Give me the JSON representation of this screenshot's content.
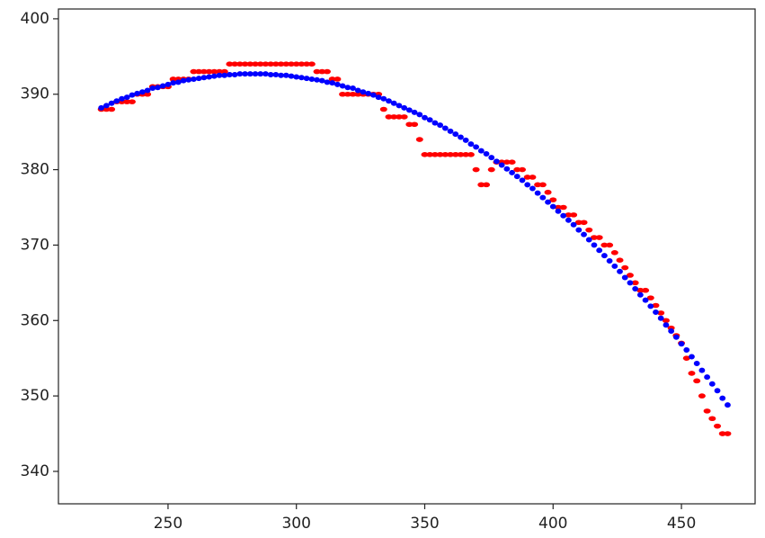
{
  "chart_data": {
    "type": "scatter",
    "xlim": [
      207.3,
      478.7
    ],
    "ylim": [
      335.7,
      401.3
    ],
    "xticks": [
      250,
      300,
      350,
      400,
      450
    ],
    "yticks": [
      340,
      350,
      360,
      370,
      380,
      390,
      400
    ],
    "x": [
      224,
      226,
      228,
      230,
      232,
      234,
      236,
      238,
      240,
      242,
      244,
      246,
      248,
      250,
      252,
      254,
      256,
      258,
      260,
      262,
      264,
      266,
      268,
      270,
      272,
      274,
      276,
      278,
      280,
      282,
      284,
      286,
      288,
      290,
      292,
      294,
      296,
      298,
      300,
      302,
      304,
      306,
      308,
      310,
      312,
      314,
      316,
      318,
      320,
      322,
      324,
      326,
      328,
      330,
      332,
      334,
      336,
      338,
      340,
      342,
      344,
      346,
      348,
      350,
      352,
      354,
      356,
      358,
      360,
      362,
      364,
      366,
      368,
      370,
      372,
      374,
      376,
      378,
      380,
      382,
      384,
      386,
      388,
      390,
      392,
      394,
      396,
      398,
      400,
      402,
      404,
      406,
      408,
      410,
      412,
      414,
      416,
      418,
      420,
      422,
      424,
      426,
      428,
      430,
      432,
      434,
      436,
      438,
      440,
      442,
      444,
      446,
      448,
      450,
      452,
      454,
      456,
      458,
      460,
      462,
      464,
      466,
      468
    ],
    "series": [
      {
        "color": "#ff0000",
        "values": [
          388,
          388,
          388,
          389,
          389,
          389,
          389,
          390,
          390,
          390,
          391,
          391,
          391,
          391,
          392,
          392,
          392,
          392,
          393,
          393,
          393,
          393,
          393,
          393,
          393,
          394,
          394,
          394,
          394,
          394,
          394,
          394,
          394,
          394,
          394,
          394,
          394,
          394,
          394,
          394,
          394,
          394,
          393,
          393,
          393,
          392,
          392,
          390,
          390,
          390,
          390,
          390,
          390,
          390,
          390,
          388,
          387,
          387,
          387,
          387,
          386,
          386,
          384,
          382,
          382,
          382,
          382,
          382,
          382,
          382,
          382,
          382,
          382,
          380,
          378,
          378,
          380,
          381,
          381,
          381,
          381,
          380,
          380,
          379,
          379,
          378,
          378,
          377,
          376,
          375,
          375,
          374,
          374,
          373,
          373,
          372,
          371,
          371,
          370,
          370,
          369,
          368,
          367,
          366,
          365,
          364,
          364,
          363,
          362,
          361,
          360,
          359,
          358,
          357,
          355,
          353,
          352,
          350,
          348,
          347,
          346,
          345,
          345
        ]
      },
      {
        "color": "#0000ff",
        "values": [
          388.2,
          388.5,
          388.8,
          389.1,
          389.4,
          389.6,
          389.9,
          390.1,
          390.3,
          390.5,
          390.8,
          390.9,
          391.1,
          391.3,
          391.5,
          391.6,
          391.8,
          391.9,
          392.0,
          392.1,
          392.2,
          392.3,
          392.4,
          392.5,
          392.5,
          392.6,
          392.6,
          392.7,
          392.7,
          392.7,
          392.7,
          392.7,
          392.7,
          392.6,
          392.6,
          392.5,
          392.5,
          392.4,
          392.3,
          392.2,
          392.1,
          392.0,
          391.9,
          391.8,
          391.6,
          391.5,
          391.3,
          391.1,
          390.9,
          390.8,
          390.5,
          390.3,
          390.1,
          389.9,
          389.6,
          389.4,
          389.1,
          388.8,
          388.5,
          388.2,
          387.9,
          387.6,
          387.3,
          386.9,
          386.6,
          386.2,
          385.9,
          385.5,
          385.1,
          384.7,
          384.3,
          383.9,
          383.4,
          383.0,
          382.5,
          382.1,
          381.6,
          381.1,
          380.6,
          380.1,
          379.6,
          379.1,
          378.6,
          378.0,
          377.5,
          376.9,
          376.3,
          375.7,
          375.1,
          374.5,
          373.9,
          373.3,
          372.7,
          372.0,
          371.4,
          370.7,
          370.0,
          369.3,
          368.6,
          367.9,
          367.2,
          366.5,
          365.7,
          365.0,
          364.2,
          363.4,
          362.7,
          361.9,
          361.1,
          360.3,
          359.4,
          358.6,
          357.8,
          356.9,
          356.1,
          355.2,
          354.3,
          353.4,
          352.5,
          351.6,
          350.7,
          349.7,
          348.8
        ]
      }
    ]
  }
}
